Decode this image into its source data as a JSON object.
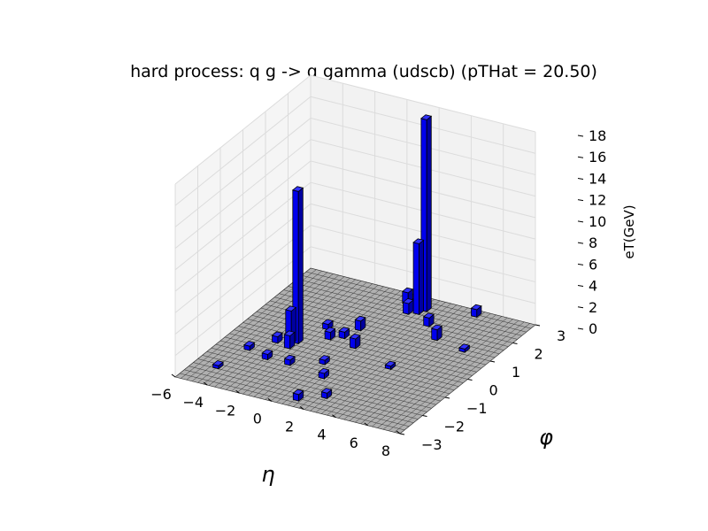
{
  "chart_data": {
    "type": "bar3d",
    "title": "hard process: q g -> q gamma (udscb) (pTHat = 20.50)",
    "xlabel": "η",
    "ylabel": "φ",
    "zlabel": "eT(GeV)",
    "xlim": [
      -6,
      8
    ],
    "ylim": [
      -3,
      3
    ],
    "zlim": [
      0,
      18
    ],
    "xticks": [
      "−6",
      "−4",
      "−2",
      "0",
      "2",
      "4",
      "6",
      "8"
    ],
    "yticks": [
      "−3",
      "−2",
      "−1",
      "0",
      "1",
      "2",
      "3"
    ],
    "zticks": [
      "0",
      "2",
      "4",
      "6",
      "8",
      "10",
      "12",
      "14",
      "16",
      "18"
    ],
    "grid": true,
    "colors": {
      "bar": "#0000ee",
      "bar_side": "#0000a0",
      "floor": "#b0b0b0",
      "pane": "#f2f2f2"
    },
    "bars": [
      {
        "eta": -2.3,
        "phi": -0.2,
        "eT": 14.2
      },
      {
        "eta": 1.9,
        "phi": 2.5,
        "eT": 17.9
      },
      {
        "eta": 1.7,
        "phi": 2.3,
        "eT": 6.6
      },
      {
        "eta": -2.6,
        "phi": -0.3,
        "eT": 3.1
      },
      {
        "eta": -2.4,
        "phi": -0.5,
        "eT": 1.2
      },
      {
        "eta": 0.6,
        "phi": 2.6,
        "eT": 1.1
      },
      {
        "eta": 1.2,
        "phi": 2.2,
        "eT": 1.0
      },
      {
        "eta": 2.9,
        "phi": 1.9,
        "eT": 0.8
      },
      {
        "eta": 4.1,
        "phi": 1.4,
        "eT": 1.0
      },
      {
        "eta": 4.6,
        "phi": 2.8,
        "eT": 0.7
      },
      {
        "eta": -0.1,
        "phi": 1.0,
        "eT": 0.9
      },
      {
        "eta": 0.7,
        "phi": 0.2,
        "eT": 0.9
      },
      {
        "eta": -1.0,
        "phi": 0.3,
        "eT": 0.7
      },
      {
        "eta": -3.3,
        "phi": -0.4,
        "eT": 0.6
      },
      {
        "eta": -4.2,
        "phi": -1.0,
        "eT": 0.4
      },
      {
        "eta": -2.8,
        "phi": -1.2,
        "eT": 0.5
      },
      {
        "eta": -1.4,
        "phi": -1.2,
        "eT": 0.5
      },
      {
        "eta": 1.0,
        "phi": -1.4,
        "eT": 0.5
      },
      {
        "eta": 2.3,
        "phi": -2.2,
        "eT": 0.5
      },
      {
        "eta": 1.1,
        "phi": -2.6,
        "eT": 0.6
      },
      {
        "eta": -4.6,
        "phi": -2.1,
        "eT": 0.3
      },
      {
        "eta": 3.6,
        "phi": -0.3,
        "eT": 0.3
      },
      {
        "eta": 6.1,
        "phi": 1.2,
        "eT": 0.3
      },
      {
        "eta": 0.2,
        "phi": -0.8,
        "eT": 0.4
      },
      {
        "eta": -0.4,
        "phi": 0.5,
        "eT": 0.6
      },
      {
        "eta": -1.7,
        "phi": 0.7,
        "eT": 0.5
      }
    ]
  }
}
